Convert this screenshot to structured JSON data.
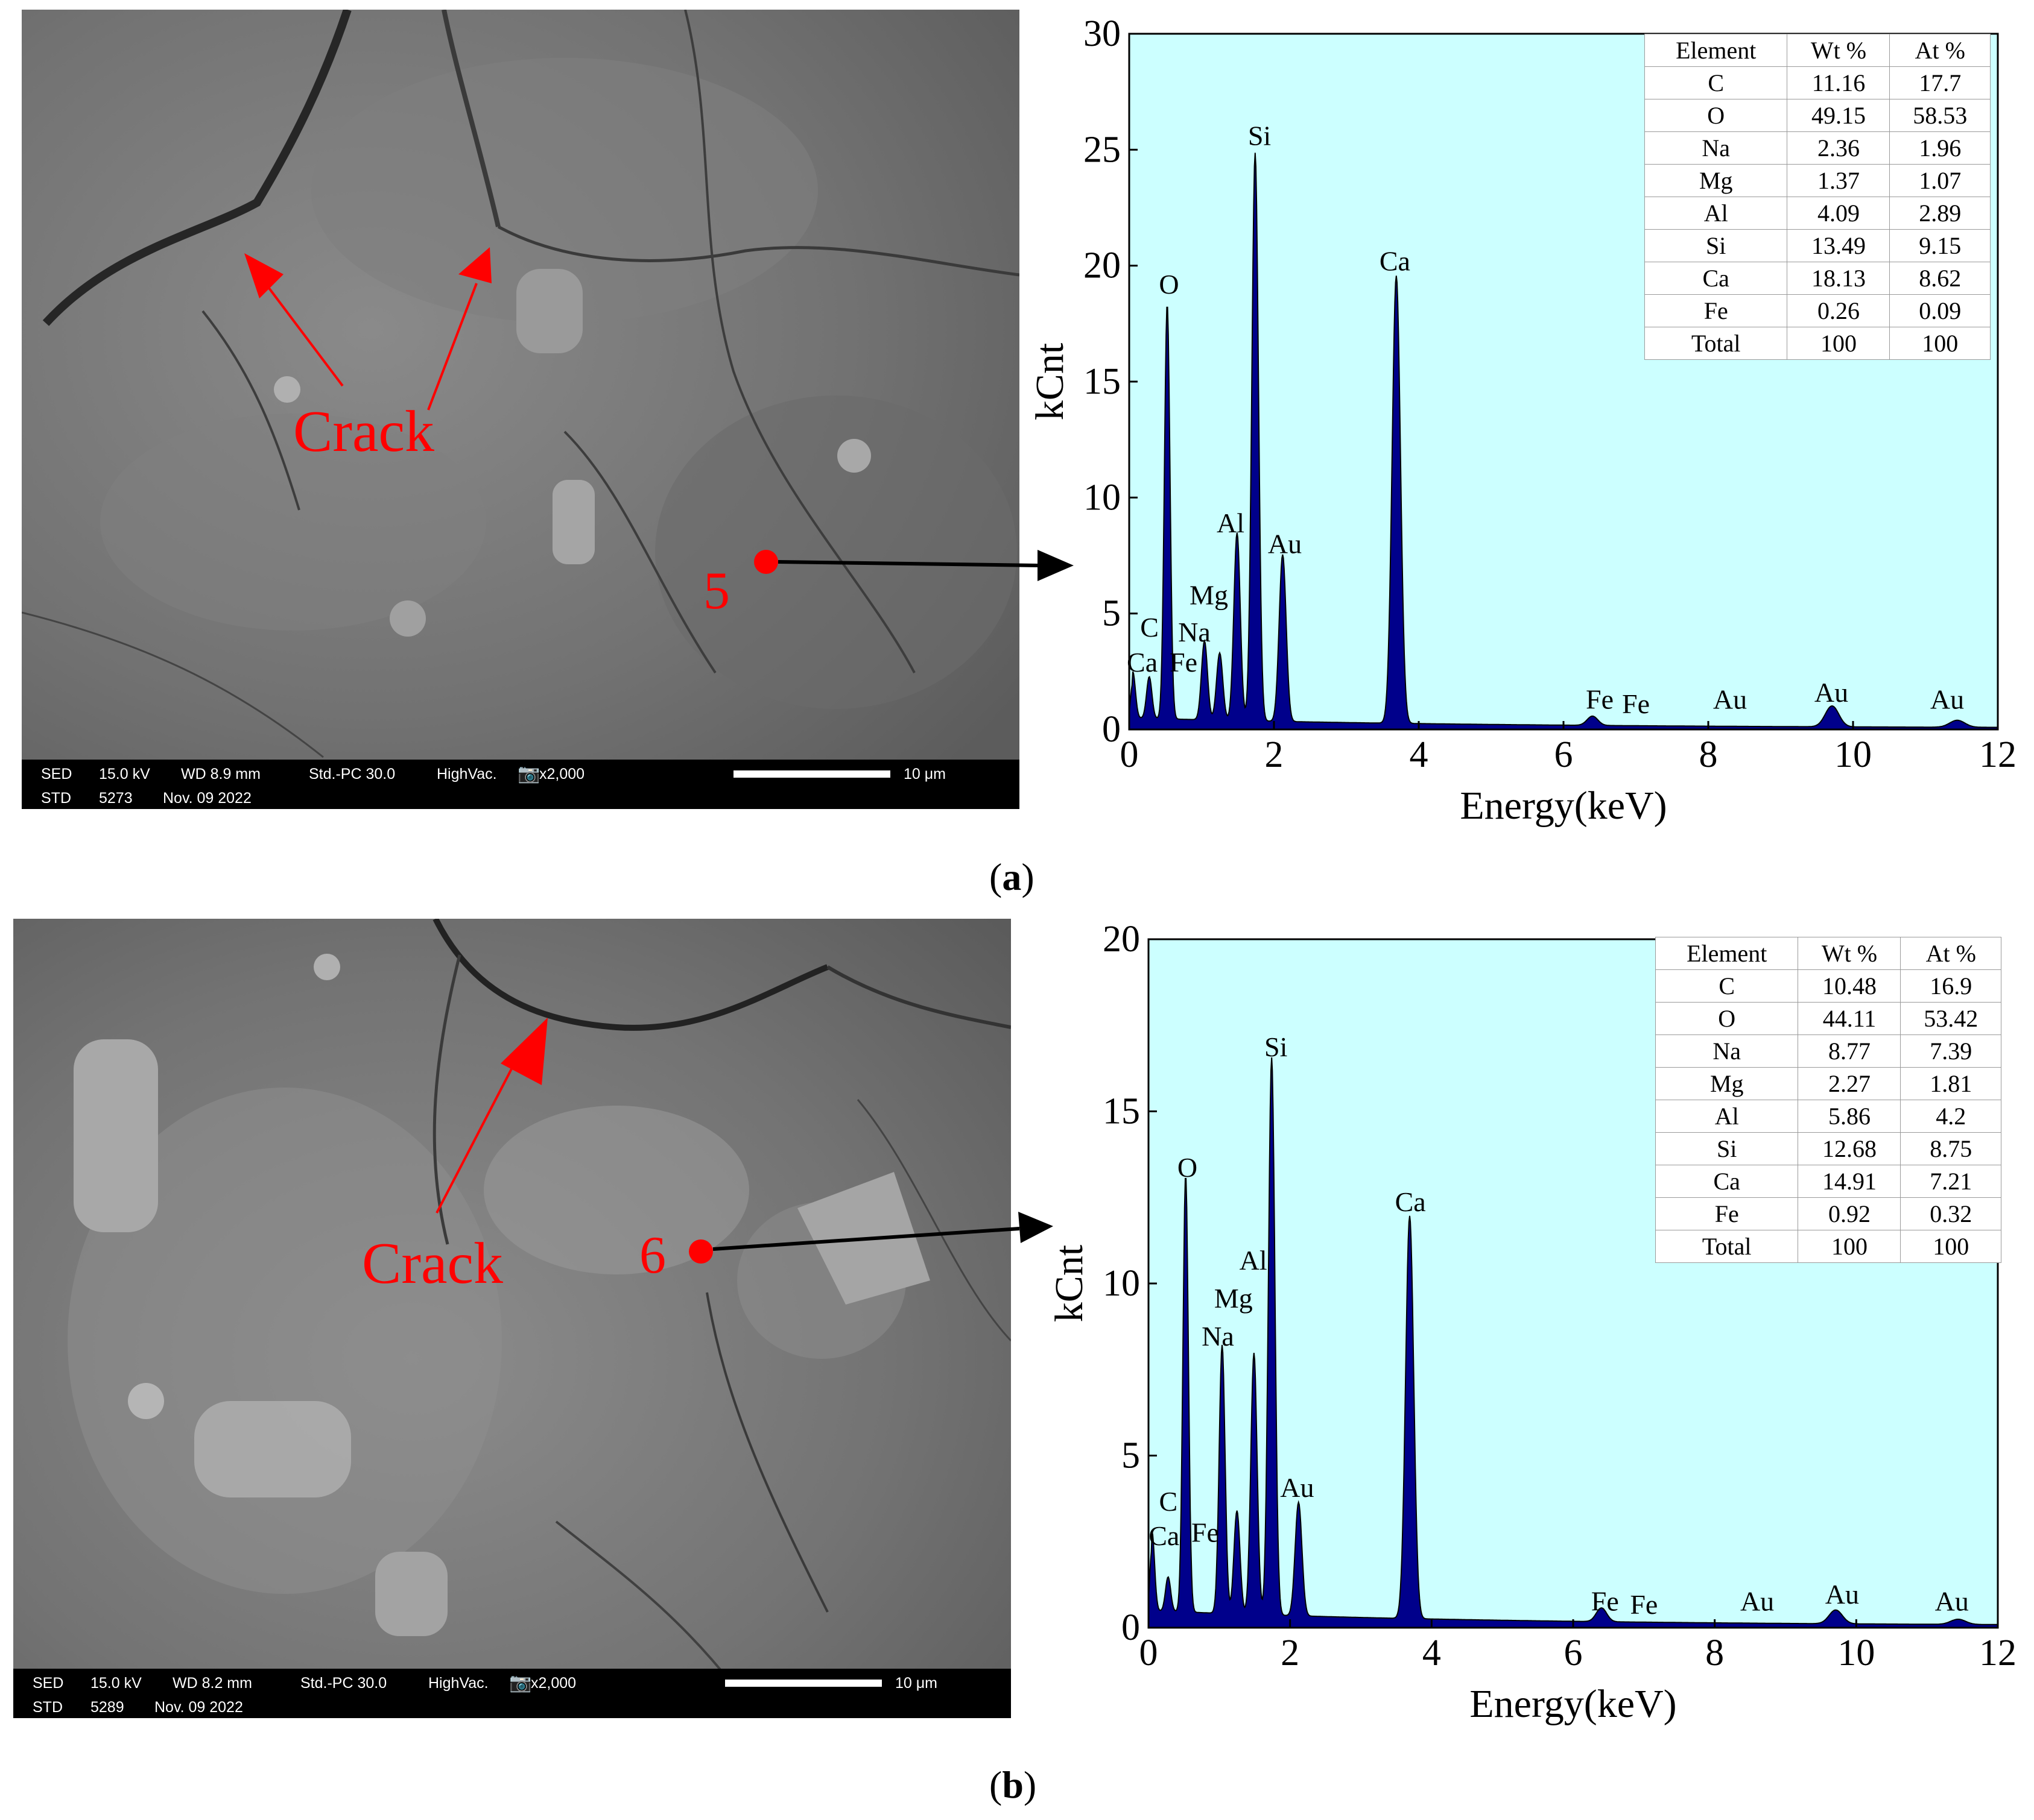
{
  "panels": [
    {
      "caption": "a",
      "crack_label": "Crack",
      "point_label": "5",
      "sem": {
        "detector": "SED",
        "voltage": "15.0 kV",
        "wd": "WD 8.9 mm",
        "std_pc": "Std.-PC 30.0",
        "vac": "HighVac.",
        "mag": "x2,000",
        "std": "STD",
        "img_no": "5273",
        "date": "Nov. 09 2022",
        "scale": "10 μm"
      },
      "table": {
        "headers": [
          "Element",
          "Wt %",
          "At %"
        ],
        "rows": [
          [
            "C",
            "11.16",
            "17.7"
          ],
          [
            "O",
            "49.15",
            "58.53"
          ],
          [
            "Na",
            "2.36",
            "1.96"
          ],
          [
            "Mg",
            "1.37",
            "1.07"
          ],
          [
            "Al",
            "4.09",
            "2.89"
          ],
          [
            "Si",
            "13.49",
            "9.15"
          ],
          [
            "Ca",
            "18.13",
            "8.62"
          ],
          [
            "Fe",
            "0.26",
            "0.09"
          ],
          [
            "Total",
            "100",
            "100"
          ]
        ]
      }
    },
    {
      "caption": "b",
      "crack_label": "Crack",
      "point_label": "6",
      "sem": {
        "detector": "SED",
        "voltage": "15.0 kV",
        "wd": "WD 8.2 mm",
        "std_pc": "Std.-PC 30.0",
        "vac": "HighVac.",
        "mag": "x2,000",
        "std": "STD",
        "img_no": "5289",
        "date": "Nov. 09 2022",
        "scale": "10 μm"
      },
      "table": {
        "headers": [
          "Element",
          "Wt %",
          "At %"
        ],
        "rows": [
          [
            "C",
            "10.48",
            "16.9"
          ],
          [
            "O",
            "44.11",
            "53.42"
          ],
          [
            "Na",
            "8.77",
            "7.39"
          ],
          [
            "Mg",
            "2.27",
            "1.81"
          ],
          [
            "Al",
            "5.86",
            "4.2"
          ],
          [
            "Si",
            "12.68",
            "8.75"
          ],
          [
            "Ca",
            "14.91",
            "7.21"
          ],
          [
            "Fe",
            "0.92",
            "0.32"
          ],
          [
            "Total",
            "100",
            "100"
          ]
        ]
      }
    }
  ],
  "colors": {
    "plot_bg": "#ccffff",
    "fill": "#00008b",
    "annotation": "#ff0000"
  },
  "chart_data": [
    {
      "type": "area",
      "xlabel": "Energy(keV)",
      "ylabel": "kCnt",
      "xlim": [
        0,
        12
      ],
      "ylim": [
        0,
        30
      ],
      "xticks": [
        0,
        2,
        4,
        6,
        8,
        10,
        12
      ],
      "yticks": [
        0,
        5,
        10,
        15,
        20,
        25,
        30
      ],
      "peaks": [
        {
          "label": "C",
          "energy": 0.277,
          "height": 1.8
        },
        {
          "label": "Ca",
          "energy": 0.05,
          "height": 2.0
        },
        {
          "label": "O",
          "energy": 0.525,
          "height": 17.9
        },
        {
          "label": "Na",
          "energy": 1.04,
          "height": 3.4
        },
        {
          "label": "Mg",
          "energy": 1.25,
          "height": 2.9
        },
        {
          "label": "Al",
          "energy": 1.49,
          "height": 8.1
        },
        {
          "label": "Si",
          "energy": 1.74,
          "height": 24.5
        },
        {
          "label": "Au",
          "energy": 2.12,
          "height": 7.2
        },
        {
          "label": "Ca",
          "energy": 3.69,
          "height": 19.3
        },
        {
          "label": "Fe",
          "energy": 6.4,
          "height": 0.4
        },
        {
          "label": "Au",
          "energy": 9.71,
          "height": 0.9
        },
        {
          "label": "Au",
          "energy": 11.44,
          "height": 0.3
        }
      ],
      "peak_labels": [
        {
          "text": "C",
          "x": 0.28,
          "y": 4.0
        },
        {
          "text": "Ca",
          "x": 0.18,
          "y": 2.5
        },
        {
          "text": "Fe",
          "x": 0.75,
          "y": 2.5
        },
        {
          "text": "Na",
          "x": 0.9,
          "y": 3.8
        },
        {
          "text": "Mg",
          "x": 1.1,
          "y": 5.4
        },
        {
          "text": "O",
          "x": 0.55,
          "y": 18.8
        },
        {
          "text": "Al",
          "x": 1.4,
          "y": 8.5
        },
        {
          "text": "Au",
          "x": 2.15,
          "y": 7.6
        },
        {
          "text": "Si",
          "x": 1.8,
          "y": 25.2
        },
        {
          "text": "Ca",
          "x": 3.67,
          "y": 19.8
        },
        {
          "text": "Fe",
          "x": 6.5,
          "y": 0.9
        },
        {
          "text": "Fe",
          "x": 7.0,
          "y": 0.7
        },
        {
          "text": "Au",
          "x": 8.3,
          "y": 0.9
        },
        {
          "text": "Au",
          "x": 9.7,
          "y": 1.2
        },
        {
          "text": "Au",
          "x": 11.3,
          "y": 0.9
        }
      ]
    },
    {
      "type": "area",
      "xlabel": "Energy(keV)",
      "ylabel": "kCnt",
      "xlim": [
        0,
        12
      ],
      "ylim": [
        0,
        20
      ],
      "xticks": [
        0,
        2,
        4,
        6,
        8,
        10,
        12
      ],
      "yticks": [
        0,
        5,
        10,
        15,
        20
      ],
      "peaks": [
        {
          "label": "C",
          "energy": 0.277,
          "height": 1.0
        },
        {
          "label": "Ca",
          "energy": 0.05,
          "height": 2.3
        },
        {
          "label": "O",
          "energy": 0.525,
          "height": 12.7
        },
        {
          "label": "Na",
          "energy": 1.04,
          "height": 7.8
        },
        {
          "label": "Mg",
          "energy": 1.25,
          "height": 3.0
        },
        {
          "label": "Al",
          "energy": 1.49,
          "height": 7.6
        },
        {
          "label": "Si",
          "energy": 1.74,
          "height": 16.2
        },
        {
          "label": "Au",
          "energy": 2.12,
          "height": 3.3
        },
        {
          "label": "Ca",
          "energy": 3.69,
          "height": 11.7
        },
        {
          "label": "Fe",
          "energy": 6.4,
          "height": 0.4
        },
        {
          "label": "Au",
          "energy": 9.71,
          "height": 0.4
        },
        {
          "label": "Au",
          "energy": 11.44,
          "height": 0.15
        }
      ],
      "peak_labels": [
        {
          "text": "C",
          "x": 0.28,
          "y": 3.4
        },
        {
          "text": "Ca",
          "x": 0.22,
          "y": 2.4
        },
        {
          "text": "Fe",
          "x": 0.8,
          "y": 2.5
        },
        {
          "text": "Na",
          "x": 0.98,
          "y": 8.2
        },
        {
          "text": "Mg",
          "x": 1.2,
          "y": 9.3
        },
        {
          "text": "Al",
          "x": 1.48,
          "y": 10.4
        },
        {
          "text": "O",
          "x": 0.55,
          "y": 13.1
        },
        {
          "text": "Au",
          "x": 2.1,
          "y": 3.8
        },
        {
          "text": "Si",
          "x": 1.8,
          "y": 16.6
        },
        {
          "text": "Ca",
          "x": 3.7,
          "y": 12.1
        },
        {
          "text": "Fe",
          "x": 6.45,
          "y": 0.5
        },
        {
          "text": "Fe",
          "x": 7.0,
          "y": 0.4
        },
        {
          "text": "Au",
          "x": 8.6,
          "y": 0.5
        },
        {
          "text": "Au",
          "x": 9.8,
          "y": 0.7
        },
        {
          "text": "Au",
          "x": 11.35,
          "y": 0.5
        }
      ]
    }
  ]
}
